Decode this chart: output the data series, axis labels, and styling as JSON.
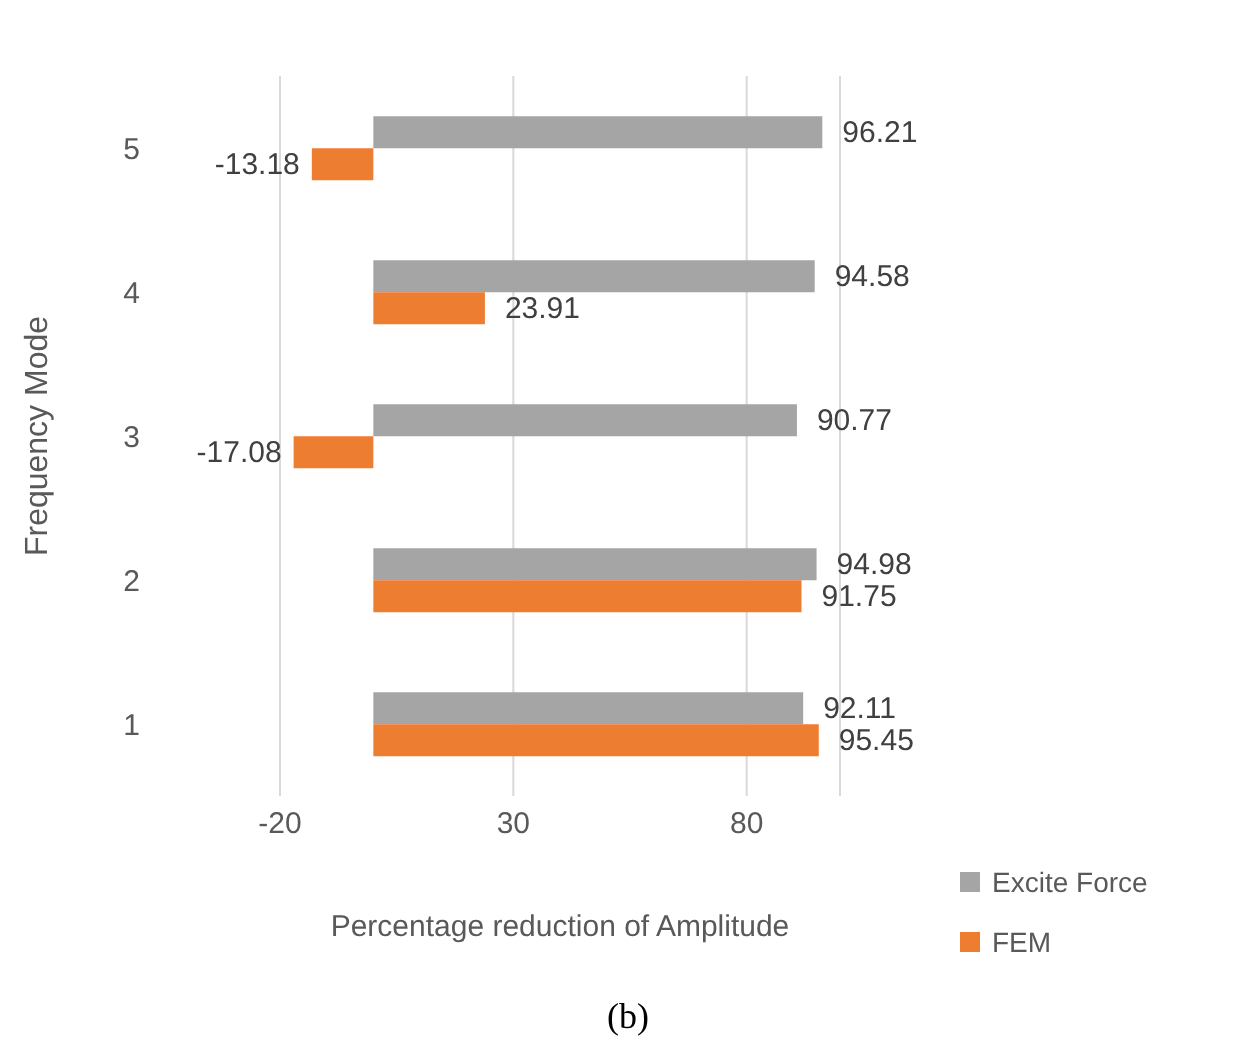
{
  "chart_data": {
    "type": "bar",
    "orientation": "horizontal",
    "categories": [
      "5",
      "4",
      "3",
      "2",
      "1"
    ],
    "series": [
      {
        "name": "Excite Force",
        "color": "#a5a5a5",
        "values": [
          96.21,
          94.58,
          90.77,
          94.98,
          92.11
        ]
      },
      {
        "name": "FEM",
        "color": "#ed7d31",
        "values": [
          -13.18,
          23.91,
          -17.08,
          91.75,
          95.45
        ]
      }
    ],
    "xlim": [
      -20,
      100
    ],
    "xticks": [
      -20,
      30,
      80
    ],
    "xlabel": "Percentage reduction of Amplitude",
    "ylabel": "Frequency Mode",
    "grid": "x",
    "legend": "bottom right",
    "data_labels": true,
    "annotations": [
      "(b)"
    ]
  }
}
